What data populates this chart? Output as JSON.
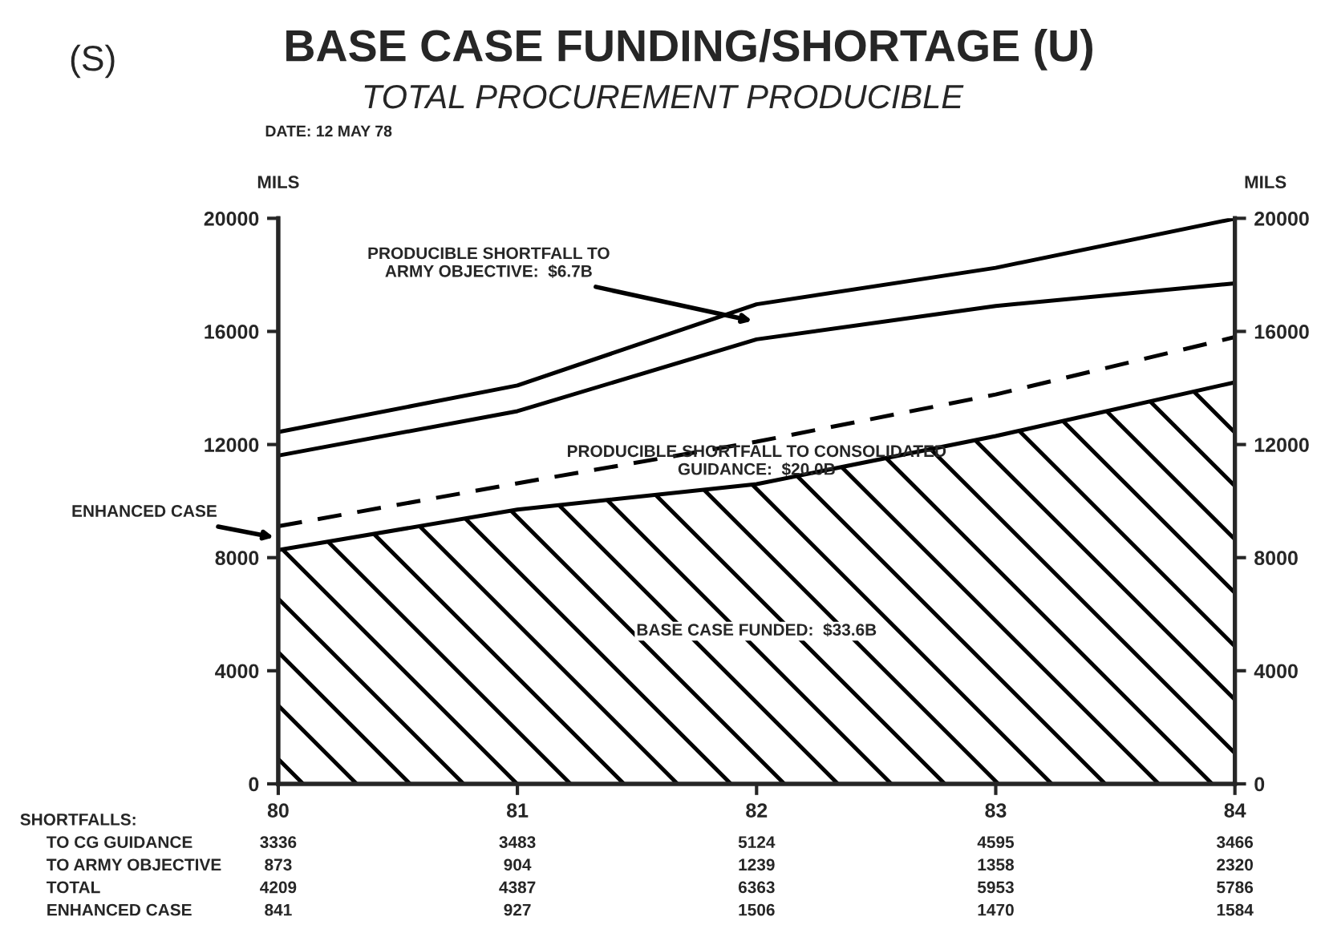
{
  "chart_data": {
    "type": "line",
    "title": "BASE CASE FUNDING/SHORTAGE (U)",
    "subtitle": "TOTAL PROCUREMENT PRODUCIBLE",
    "ylabel": "MILS",
    "y2label": "MILS",
    "x": [
      80,
      81,
      82,
      83,
      84
    ],
    "series": [
      {
        "type": "area",
        "color": "#000000",
        "values": [
          8270,
          9700,
          10600,
          12300,
          14200
        ]
      },
      {
        "type": "line",
        "color": "#000000",
        "line_style": "dashed",
        "values": [
          9110,
          10630,
          12100,
          13770,
          15800
        ]
      },
      {
        "color": "#000000",
        "line_style": "solid",
        "values": [
          11610,
          13180,
          15720,
          16900,
          17700
        ]
      },
      {
        "color": "#000000",
        "line_style": "solid",
        "values": [
          12440,
          14090,
          16960,
          18250,
          19990
        ]
      }
    ],
    "xlim": [
      80,
      84
    ],
    "xticks": [
      80,
      81,
      82,
      83,
      84
    ],
    "ylim": [
      0,
      20000
    ],
    "yticks": [
      0,
      4000,
      8000,
      12000,
      16000,
      20000
    ],
    "y2lim": [
      0,
      20000
    ],
    "y2ticks": [
      0,
      4000,
      8000,
      12000,
      16000,
      20000
    ],
    "grid": false,
    "legend": false,
    "marker": "none",
    "annotations": [
      "PRODUCIBLE SHORTFALL TO\nARMY OBJECTIVE:  $6.7B",
      "PRODUCIBLE SHORTFALL TO CONSOLIDATED\nGUIDANCE:  $20.0B",
      "BASE CASE FUNDED:  $33.6B",
      "ENHANCED CASE",
      "DATE: 12 MAY 78",
      "(S)",
      "SHORTFALLS:",
      "TO CG GUIDANCE",
      "TO ARMY OBJECTIVE",
      "TOTAL",
      "ENHANCED CASE",
      "3336",
      "3483",
      "5124",
      "4595",
      "3466",
      "873",
      "904",
      "1239",
      "1358",
      "2320",
      "4209",
      "4387",
      "6363",
      "5953",
      "5786",
      "841",
      "927",
      "1506",
      "1470",
      "1584"
    ]
  }
}
